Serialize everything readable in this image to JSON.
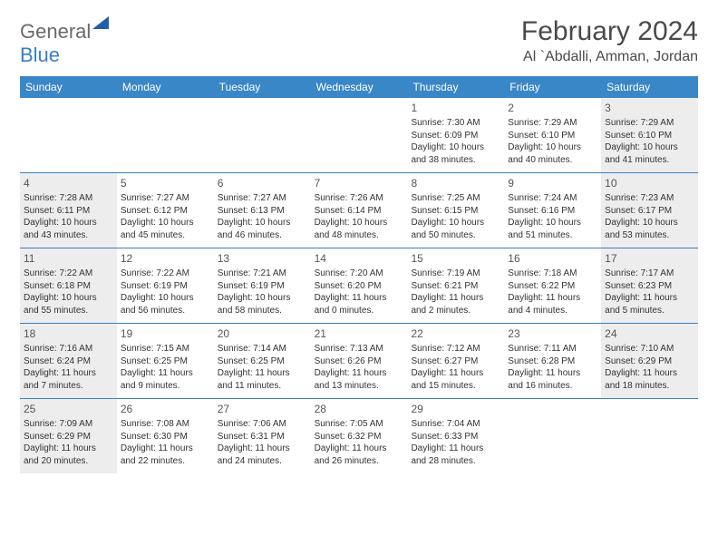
{
  "logo": {
    "part1": "General",
    "part2": "Blue"
  },
  "title": "February 2024",
  "location": "Al `Abdalli, Amman, Jordan",
  "colors": {
    "header_bg": "#3a87c7",
    "border": "#3a7fc4",
    "shaded": "#ededed",
    "text": "#333333",
    "title_text": "#4a4a4a"
  },
  "day_names": [
    "Sunday",
    "Monday",
    "Tuesday",
    "Wednesday",
    "Thursday",
    "Friday",
    "Saturday"
  ],
  "weeks": [
    [
      null,
      null,
      null,
      null,
      {
        "d": "1",
        "sr": "Sunrise: 7:30 AM",
        "ss": "Sunset: 6:09 PM",
        "dl": "Daylight: 10 hours and 38 minutes."
      },
      {
        "d": "2",
        "sr": "Sunrise: 7:29 AM",
        "ss": "Sunset: 6:10 PM",
        "dl": "Daylight: 10 hours and 40 minutes."
      },
      {
        "d": "3",
        "sr": "Sunrise: 7:29 AM",
        "ss": "Sunset: 6:10 PM",
        "dl": "Daylight: 10 hours and 41 minutes.",
        "shaded": true
      }
    ],
    [
      {
        "d": "4",
        "sr": "Sunrise: 7:28 AM",
        "ss": "Sunset: 6:11 PM",
        "dl": "Daylight: 10 hours and 43 minutes.",
        "shaded": true
      },
      {
        "d": "5",
        "sr": "Sunrise: 7:27 AM",
        "ss": "Sunset: 6:12 PM",
        "dl": "Daylight: 10 hours and 45 minutes."
      },
      {
        "d": "6",
        "sr": "Sunrise: 7:27 AM",
        "ss": "Sunset: 6:13 PM",
        "dl": "Daylight: 10 hours and 46 minutes."
      },
      {
        "d": "7",
        "sr": "Sunrise: 7:26 AM",
        "ss": "Sunset: 6:14 PM",
        "dl": "Daylight: 10 hours and 48 minutes."
      },
      {
        "d": "8",
        "sr": "Sunrise: 7:25 AM",
        "ss": "Sunset: 6:15 PM",
        "dl": "Daylight: 10 hours and 50 minutes."
      },
      {
        "d": "9",
        "sr": "Sunrise: 7:24 AM",
        "ss": "Sunset: 6:16 PM",
        "dl": "Daylight: 10 hours and 51 minutes."
      },
      {
        "d": "10",
        "sr": "Sunrise: 7:23 AM",
        "ss": "Sunset: 6:17 PM",
        "dl": "Daylight: 10 hours and 53 minutes.",
        "shaded": true
      }
    ],
    [
      {
        "d": "11",
        "sr": "Sunrise: 7:22 AM",
        "ss": "Sunset: 6:18 PM",
        "dl": "Daylight: 10 hours and 55 minutes.",
        "shaded": true
      },
      {
        "d": "12",
        "sr": "Sunrise: 7:22 AM",
        "ss": "Sunset: 6:19 PM",
        "dl": "Daylight: 10 hours and 56 minutes."
      },
      {
        "d": "13",
        "sr": "Sunrise: 7:21 AM",
        "ss": "Sunset: 6:19 PM",
        "dl": "Daylight: 10 hours and 58 minutes."
      },
      {
        "d": "14",
        "sr": "Sunrise: 7:20 AM",
        "ss": "Sunset: 6:20 PM",
        "dl": "Daylight: 11 hours and 0 minutes."
      },
      {
        "d": "15",
        "sr": "Sunrise: 7:19 AM",
        "ss": "Sunset: 6:21 PM",
        "dl": "Daylight: 11 hours and 2 minutes."
      },
      {
        "d": "16",
        "sr": "Sunrise: 7:18 AM",
        "ss": "Sunset: 6:22 PM",
        "dl": "Daylight: 11 hours and 4 minutes."
      },
      {
        "d": "17",
        "sr": "Sunrise: 7:17 AM",
        "ss": "Sunset: 6:23 PM",
        "dl": "Daylight: 11 hours and 5 minutes.",
        "shaded": true
      }
    ],
    [
      {
        "d": "18",
        "sr": "Sunrise: 7:16 AM",
        "ss": "Sunset: 6:24 PM",
        "dl": "Daylight: 11 hours and 7 minutes.",
        "shaded": true
      },
      {
        "d": "19",
        "sr": "Sunrise: 7:15 AM",
        "ss": "Sunset: 6:25 PM",
        "dl": "Daylight: 11 hours and 9 minutes."
      },
      {
        "d": "20",
        "sr": "Sunrise: 7:14 AM",
        "ss": "Sunset: 6:25 PM",
        "dl": "Daylight: 11 hours and 11 minutes."
      },
      {
        "d": "21",
        "sr": "Sunrise: 7:13 AM",
        "ss": "Sunset: 6:26 PM",
        "dl": "Daylight: 11 hours and 13 minutes."
      },
      {
        "d": "22",
        "sr": "Sunrise: 7:12 AM",
        "ss": "Sunset: 6:27 PM",
        "dl": "Daylight: 11 hours and 15 minutes."
      },
      {
        "d": "23",
        "sr": "Sunrise: 7:11 AM",
        "ss": "Sunset: 6:28 PM",
        "dl": "Daylight: 11 hours and 16 minutes."
      },
      {
        "d": "24",
        "sr": "Sunrise: 7:10 AM",
        "ss": "Sunset: 6:29 PM",
        "dl": "Daylight: 11 hours and 18 minutes.",
        "shaded": true
      }
    ],
    [
      {
        "d": "25",
        "sr": "Sunrise: 7:09 AM",
        "ss": "Sunset: 6:29 PM",
        "dl": "Daylight: 11 hours and 20 minutes.",
        "shaded": true
      },
      {
        "d": "26",
        "sr": "Sunrise: 7:08 AM",
        "ss": "Sunset: 6:30 PM",
        "dl": "Daylight: 11 hours and 22 minutes."
      },
      {
        "d": "27",
        "sr": "Sunrise: 7:06 AM",
        "ss": "Sunset: 6:31 PM",
        "dl": "Daylight: 11 hours and 24 minutes."
      },
      {
        "d": "28",
        "sr": "Sunrise: 7:05 AM",
        "ss": "Sunset: 6:32 PM",
        "dl": "Daylight: 11 hours and 26 minutes."
      },
      {
        "d": "29",
        "sr": "Sunrise: 7:04 AM",
        "ss": "Sunset: 6:33 PM",
        "dl": "Daylight: 11 hours and 28 minutes."
      },
      null,
      null
    ]
  ]
}
